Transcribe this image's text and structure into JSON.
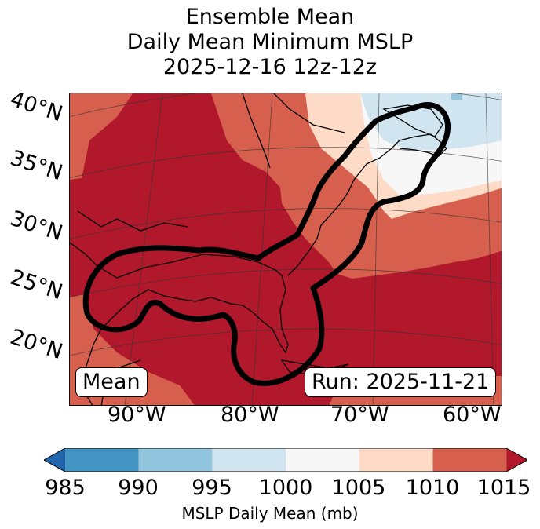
{
  "title": {
    "line1": "Ensemble Mean",
    "line2": "Daily Mean Minimum MSLP",
    "line3": "2025-12-16 12z-12z"
  },
  "map": {
    "lat_labels": [
      "40°N",
      "35°N",
      "30°N",
      "25°N",
      "20°N"
    ],
    "lon_labels": [
      "90°W",
      "80°W",
      "70°W",
      "60°W"
    ],
    "left_box": "Mean",
    "right_box": "Run: 2025-11-21"
  },
  "colorbar": {
    "title": "MSLP Daily Mean (mb)",
    "ticks": [
      "985",
      "990",
      "995",
      "1000",
      "1005",
      "1010",
      "1015"
    ],
    "colors": {
      "under": "#2166ac",
      "c985_990": "#4393c3",
      "c990_995": "#92c5de",
      "c995_1000": "#d1e5f0",
      "c1000_1005": "#f7f7f7",
      "c1005_1010": "#fddbc7",
      "c1010_1015": "#d6604d",
      "over": "#b2182b"
    }
  }
}
